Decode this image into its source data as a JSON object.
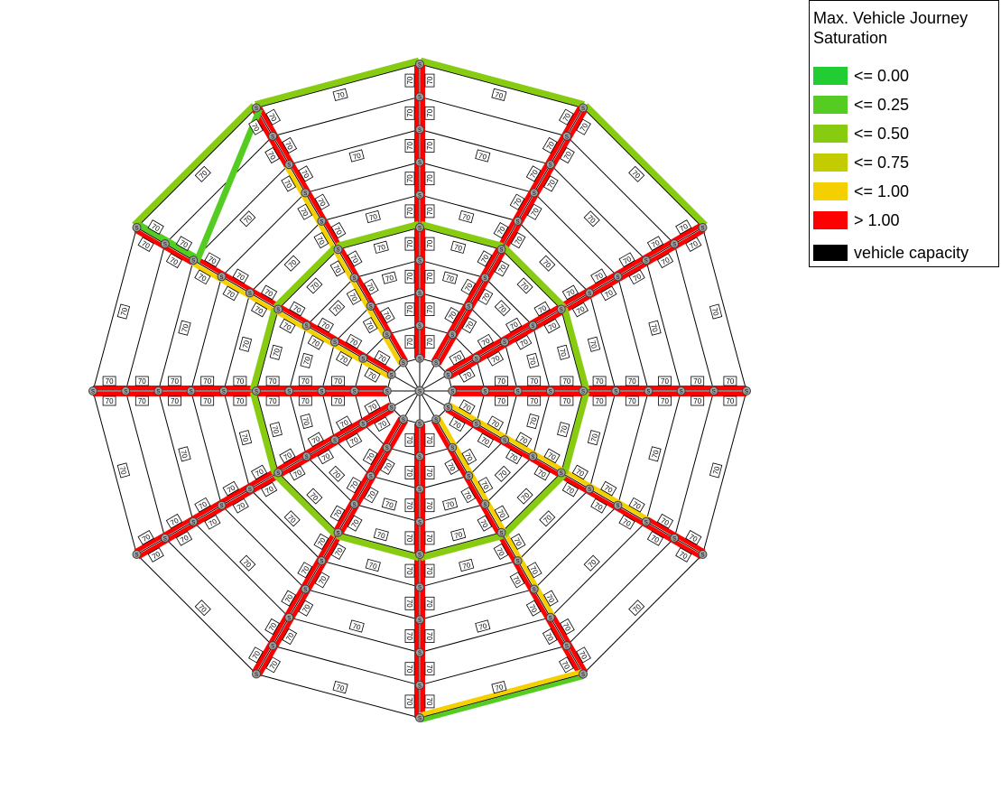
{
  "legend": {
    "title_line1": "Max. Vehicle Journey",
    "title_line2": "Saturation",
    "items": [
      {
        "label": "<= 0.00",
        "color": "#22cc33"
      },
      {
        "label": "<= 0.25",
        "color": "#55cc22"
      },
      {
        "label": "<= 0.50",
        "color": "#88cc11"
      },
      {
        "label": "<= 0.75",
        "color": "#c2cc00"
      },
      {
        "label": "<= 1.00",
        "color": "#f5d000"
      },
      {
        "label": "> 1.00",
        "color": "#ff0000"
      },
      {
        "label": "vehicle capacity",
        "color": "#000000"
      }
    ]
  },
  "network": {
    "spokes": 12,
    "rings": 10,
    "link_label": "70",
    "node_label": "S",
    "center_node_label": "S",
    "colors": {
      "link_line": "#000000",
      "node_fill": "#a0a0a0",
      "node_stroke": "#404040",
      "saturated": "#ff0000",
      "mid": "#88cc11",
      "low": "#55cc22",
      "amber": "#f5d000"
    }
  }
}
